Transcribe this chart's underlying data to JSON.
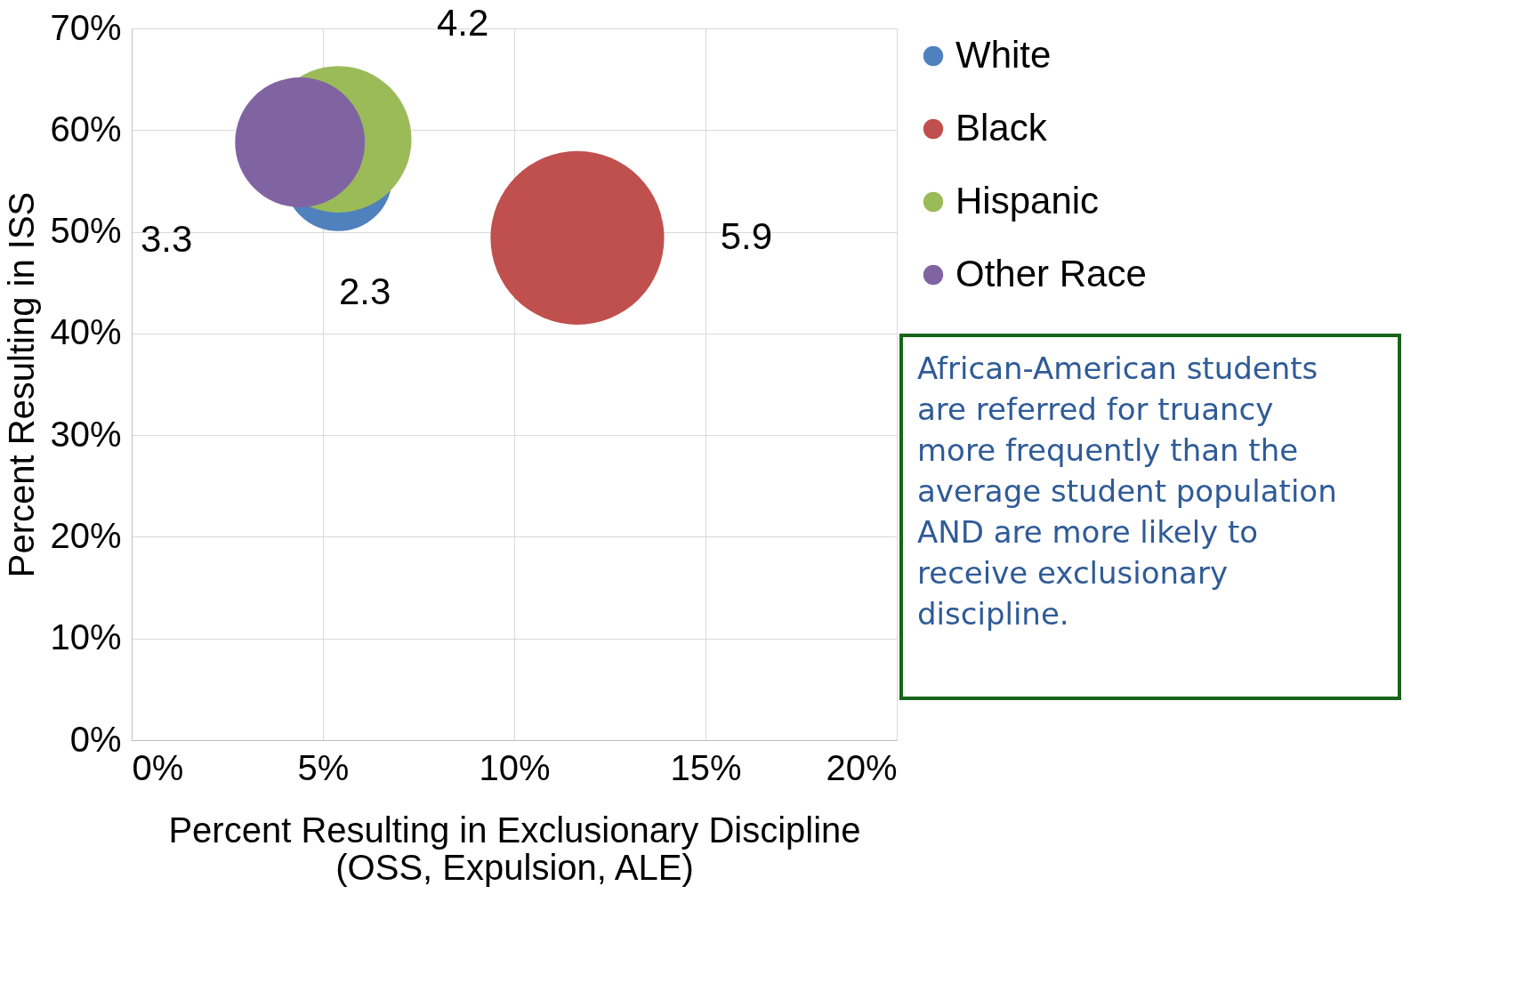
{
  "chart_data": {
    "type": "bubble",
    "xlabel": "Percent Resulting in Exclusionary Discipline\n(OSS, Expulsion, ALE)",
    "ylabel": "Percent Resulting in ISS",
    "series": [
      {
        "name": "White",
        "color": "#4f81bd",
        "x": [
          5.4
        ],
        "values": [
          55.4
        ],
        "sizes": [
          2.3
        ],
        "value_labels": [
          "2.3"
        ]
      },
      {
        "name": "Black",
        "color": "#c0504d",
        "x": [
          11.65
        ],
        "values": [
          49.4
        ],
        "sizes": [
          5.9
        ],
        "value_labels": [
          "5.9"
        ]
      },
      {
        "name": "Hispanic",
        "color": "#9bbb59",
        "x": [
          5.4
        ],
        "values": [
          59.1
        ],
        "sizes": [
          4.2
        ],
        "value_labels": [
          "4.2"
        ]
      },
      {
        "name": "Other Race",
        "color": "#8064a2",
        "x": [
          4.4
        ],
        "values": [
          58.8
        ],
        "sizes": [
          3.3
        ],
        "value_labels": [
          "3.3"
        ]
      }
    ],
    "xlim": [
      0,
      20
    ],
    "xticks": [
      {
        "value": 0,
        "label": "0%"
      },
      {
        "value": 5,
        "label": "5%"
      },
      {
        "value": 10,
        "label": "10%"
      },
      {
        "value": 15,
        "label": "15%"
      },
      {
        "value": 20,
        "label": "20%"
      }
    ],
    "ylim": [
      0,
      70
    ],
    "yticks": [
      {
        "value": 0,
        "label": "0%"
      },
      {
        "value": 10,
        "label": "10%"
      },
      {
        "value": 20,
        "label": "20%"
      },
      {
        "value": 30,
        "label": "30%"
      },
      {
        "value": 40,
        "label": "40%"
      },
      {
        "value": 50,
        "label": "50%"
      },
      {
        "value": 60,
        "label": "60%"
      },
      {
        "value": 70,
        "label": "70%"
      }
    ],
    "grid": true,
    "legend": "right",
    "annotations": [
      "African-American students are referred for truancy more frequently than the average student population\n\nAND are more likely to receive exclusionary discipline."
    ]
  }
}
